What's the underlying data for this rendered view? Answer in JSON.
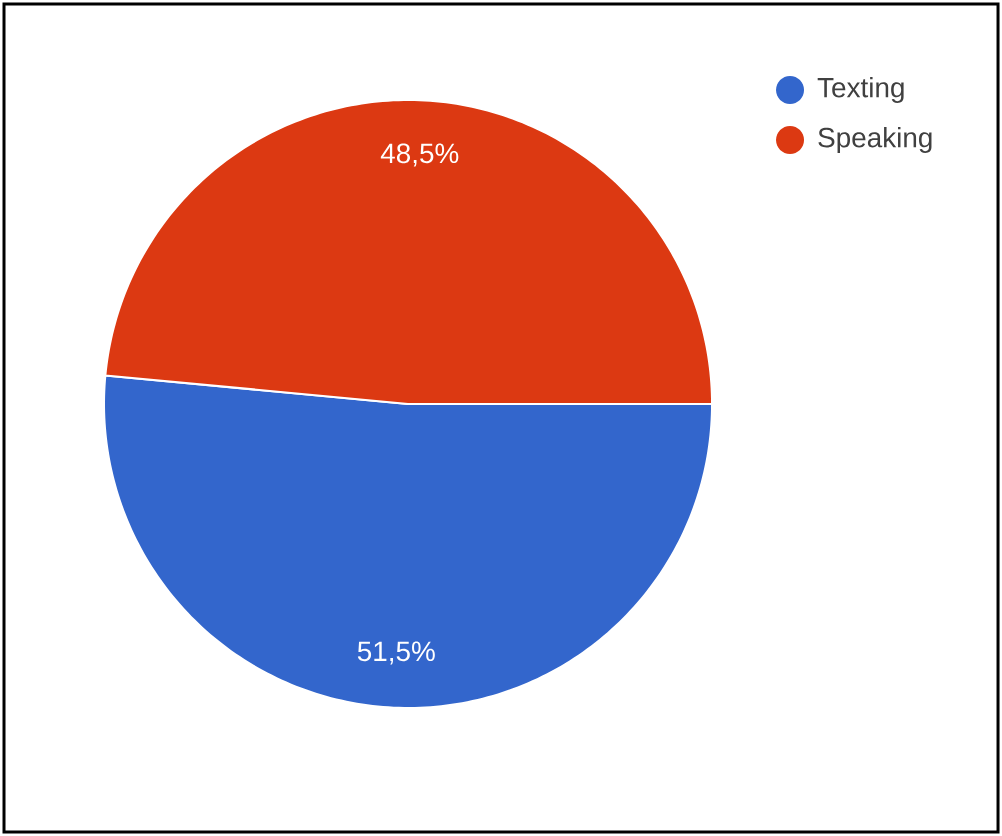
{
  "chart_data": {
    "type": "pie",
    "categories": [
      "Texting",
      "Speaking"
    ],
    "values": [
      51.5,
      48.5
    ],
    "colors": [
      "#3366cc",
      "#dc3912"
    ],
    "value_labels": [
      "51,5%",
      "48,5%"
    ],
    "legend": "top right"
  }
}
